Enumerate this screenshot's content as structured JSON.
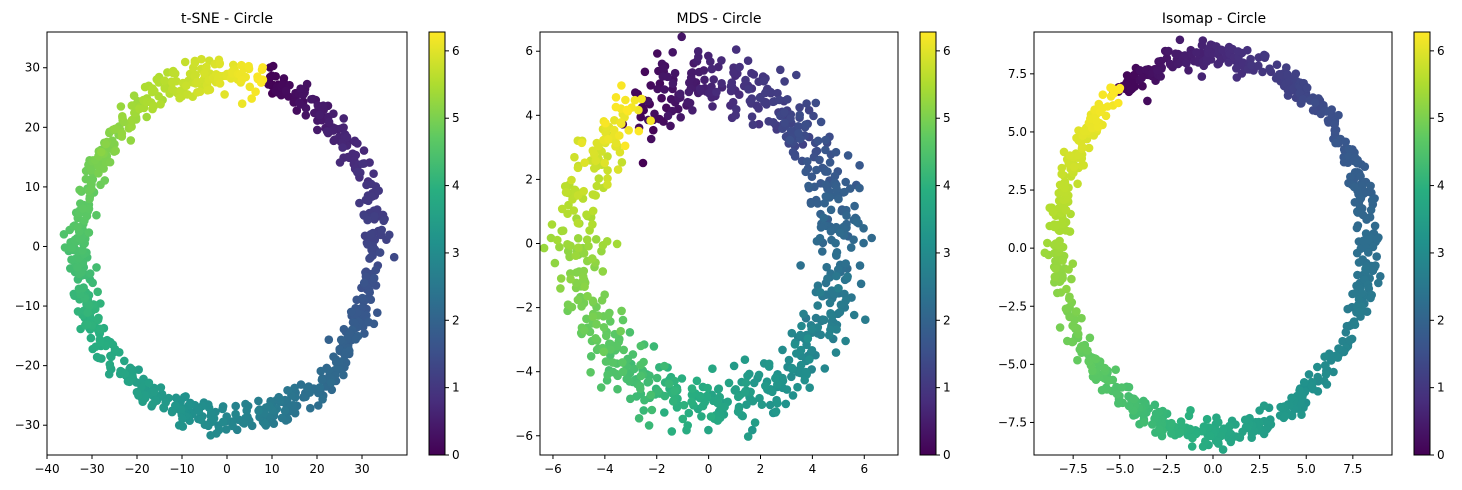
{
  "chart_data": [
    {
      "type": "scatter",
      "title": "t-SNE - Circle",
      "xlabel": "",
      "ylabel": "",
      "xlim": [
        -40,
        40
      ],
      "ylim": [
        -35,
        36
      ],
      "xticks": [
        -40,
        -30,
        -20,
        -10,
        0,
        10,
        20,
        30
      ],
      "yticks": [
        -30,
        -20,
        -10,
        0,
        10,
        20,
        30
      ],
      "shape": {
        "cx": 0,
        "cy": 0,
        "rx": 33,
        "ry": 29,
        "direction": "cw",
        "start_deg": 75,
        "jitter": 2.2
      },
      "n_points": 800,
      "grid": false,
      "colorbar": {
        "label": "",
        "range": [
          0,
          6.28
        ],
        "ticks": [
          0,
          1,
          2,
          3,
          4,
          5,
          6
        ],
        "colormap": "viridis"
      }
    },
    {
      "type": "scatter",
      "title": "MDS - Circle",
      "xlabel": "",
      "ylabel": "",
      "xlim": [
        -6.5,
        7.3
      ],
      "ylim": [
        -6.6,
        6.6
      ],
      "xticks": [
        -6,
        -4,
        -2,
        0,
        2,
        4,
        6
      ],
      "yticks": [
        -6,
        -4,
        -2,
        0,
        2,
        4,
        6
      ],
      "shape": {
        "cx": 0,
        "cy": 0,
        "rx": 5.0,
        "ry": 5.0,
        "direction": "cw",
        "start_deg": 125,
        "jitter": 0.85
      },
      "n_points": 800,
      "grid": false,
      "colorbar": {
        "label": "",
        "range": [
          0,
          6.28
        ],
        "ticks": [
          0,
          1,
          2,
          3,
          4,
          5,
          6
        ],
        "colormap": "viridis"
      }
    },
    {
      "type": "scatter",
      "title": "Isomap - Circle",
      "xlabel": "",
      "ylabel": "",
      "xlim": [
        -9.6,
        9.6
      ],
      "ylim": [
        -8.9,
        9.3
      ],
      "xticks": [
        -7.5,
        -5.0,
        -2.5,
        0.0,
        2.5,
        5.0,
        7.5
      ],
      "yticks": [
        -7.5,
        -5.0,
        -2.5,
        0.0,
        2.5,
        5.0,
        7.5
      ],
      "shape": {
        "cx": 0,
        "cy": 0.2,
        "rx": 8.3,
        "ry": 8.1,
        "direction": "cw",
        "start_deg": 128,
        "jitter": 0.45
      },
      "n_points": 800,
      "grid": false,
      "colorbar": {
        "label": "",
        "range": [
          0,
          6.28
        ],
        "ticks": [
          0,
          1,
          2,
          3,
          4,
          5,
          6
        ],
        "colormap": "viridis"
      }
    }
  ]
}
